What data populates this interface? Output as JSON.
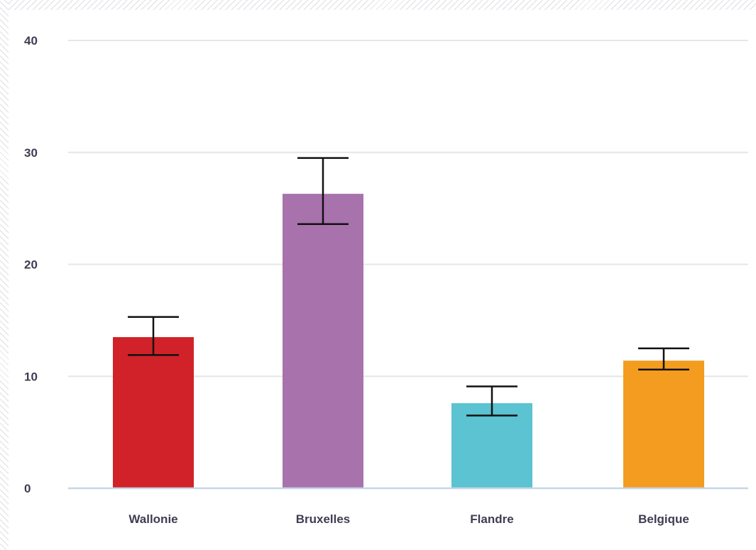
{
  "chart_data": {
    "type": "bar",
    "categories": [
      "Wallonie",
      "Bruxelles",
      "Flandre",
      "Belgique"
    ],
    "values": [
      13.5,
      26.3,
      7.6,
      11.4
    ],
    "error_low": [
      11.9,
      23.6,
      6.5,
      10.6
    ],
    "error_high": [
      15.3,
      29.5,
      9.1,
      12.5
    ],
    "colors": [
      "#d12229",
      "#a872ad",
      "#5bc3d1",
      "#f39c1f"
    ],
    "ylim": [
      0,
      40
    ],
    "yticks": [
      "0",
      "10",
      "20",
      "30",
      "40"
    ],
    "grid": true,
    "title": "",
    "xlabel": "",
    "ylabel": ""
  }
}
